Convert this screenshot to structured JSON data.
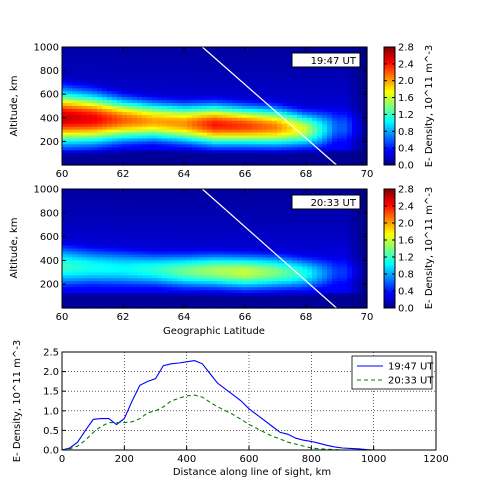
{
  "panels": [
    {
      "id": "top",
      "time_label": "19:47 UT",
      "ylabel": "Altitude, km",
      "xlabel": "",
      "colorbar_label": "E- Density, 10^11 m^-3",
      "xticks": [
        "60",
        "62",
        "64",
        "66",
        "68",
        "70"
      ],
      "yticks": [
        "200",
        "400",
        "600",
        "800",
        "1000"
      ],
      "cbticks": [
        "0.0",
        "0.4",
        "0.8",
        "1.2",
        "1.6",
        "2.0",
        "2.4",
        "2.8"
      ]
    },
    {
      "id": "middle",
      "time_label": "20:33 UT",
      "ylabel": "Altitude, km",
      "xlabel": "Geographic Latitude",
      "colorbar_label": "E- Density, 10^11 m^-3",
      "xticks": [
        "60",
        "62",
        "64",
        "66",
        "68",
        "70"
      ],
      "yticks": [
        "200",
        "400",
        "600",
        "800",
        "1000"
      ],
      "cbticks": [
        "0.0",
        "0.4",
        "0.8",
        "1.2",
        "1.6",
        "2.0",
        "2.4",
        "2.8"
      ]
    }
  ],
  "line_panel": {
    "xlabel": "Distance along line of sight, km",
    "ylabel": "E- Density, 10^11 m^-3",
    "xticks": [
      "0",
      "200",
      "400",
      "600",
      "800",
      "1000",
      "1200"
    ],
    "yticks": [
      "0.0",
      "0.5",
      "1.0",
      "1.5",
      "2.0",
      "2.5"
    ]
  },
  "chart_data": [
    {
      "type": "heatmap",
      "title": "19:47 UT",
      "xlabel": "",
      "ylabel": "Altitude, km",
      "xlim": [
        60,
        70
      ],
      "ylim": [
        0,
        1000
      ],
      "colorbar": {
        "label": "E- Density, 10^11 m^-3",
        "range": [
          0.0,
          2.8
        ],
        "colormap": "jet"
      },
      "ridge": {
        "lat": [
          60,
          61,
          62,
          63,
          64,
          65,
          66,
          67,
          68,
          68.5,
          69
        ],
        "peak_altitude_km": [
          400,
          390,
          380,
          370,
          350,
          340,
          330,
          320,
          300,
          300,
          320
        ],
        "peak_density": [
          2.6,
          2.5,
          2.2,
          2.0,
          2.05,
          2.4,
          2.3,
          2.1,
          1.6,
          1.1,
          0.6
        ],
        "width_km": [
          150,
          140,
          120,
          110,
          110,
          115,
          110,
          110,
          100,
          110,
          120
        ]
      },
      "line_of_sight": {
        "start": [
          64.6,
          1000
        ],
        "end": [
          69.0,
          0
        ]
      },
      "grid": false
    },
    {
      "type": "heatmap",
      "title": "20:33 UT",
      "xlabel": "Geographic Latitude",
      "ylabel": "Altitude, km",
      "xlim": [
        60,
        70
      ],
      "ylim": [
        0,
        1000
      ],
      "colorbar": {
        "label": "E- Density, 10^11 m^-3",
        "range": [
          0.0,
          2.8
        ],
        "colormap": "jet"
      },
      "ridge": {
        "lat": [
          60,
          61,
          62,
          63,
          64,
          65,
          66,
          67,
          68,
          68.5,
          69
        ],
        "peak_altitude_km": [
          350,
          340,
          330,
          320,
          310,
          310,
          300,
          300,
          290,
          290,
          300
        ],
        "peak_density": [
          1.2,
          1.1,
          1.05,
          1.15,
          1.35,
          1.5,
          1.6,
          1.4,
          1.1,
          0.8,
          0.5
        ],
        "width_km": [
          120,
          110,
          110,
          100,
          100,
          100,
          100,
          100,
          95,
          100,
          110
        ]
      },
      "line_of_sight": {
        "start": [
          64.6,
          1000
        ],
        "end": [
          69.0,
          0
        ]
      },
      "grid": false
    },
    {
      "type": "line",
      "title": "",
      "xlabel": "Distance along line of sight, km",
      "ylabel": "E- Density, 10^11 m^-3",
      "xlim": [
        0,
        1200
      ],
      "ylim": [
        0,
        2.5
      ],
      "grid": true,
      "legend": "top-right",
      "series": [
        {
          "name": "19:47 UT",
          "color": "#0000ff",
          "style": "solid",
          "x": [
            0,
            25,
            50,
            75,
            100,
            125,
            150,
            175,
            200,
            225,
            250,
            275,
            300,
            325,
            350,
            375,
            400,
            425,
            450,
            475,
            500,
            525,
            550,
            575,
            600,
            625,
            650,
            675,
            700,
            725,
            750,
            775,
            800,
            825,
            850,
            875,
            900,
            925,
            950,
            975,
            1000
          ],
          "y": [
            0.0,
            0.05,
            0.2,
            0.5,
            0.78,
            0.8,
            0.8,
            0.65,
            0.8,
            1.25,
            1.65,
            1.75,
            1.82,
            2.15,
            2.2,
            2.22,
            2.25,
            2.28,
            2.2,
            1.95,
            1.7,
            1.55,
            1.4,
            1.25,
            1.05,
            0.9,
            0.75,
            0.6,
            0.45,
            0.4,
            0.3,
            0.25,
            0.22,
            0.17,
            0.12,
            0.08,
            0.05,
            0.04,
            0.03,
            0.01,
            0.0
          ]
        },
        {
          "name": "20:33 UT",
          "color": "#008000",
          "style": "dashed",
          "x": [
            0,
            25,
            50,
            75,
            100,
            125,
            150,
            175,
            200,
            225,
            250,
            275,
            300,
            325,
            350,
            375,
            400,
            425,
            450,
            475,
            500,
            525,
            550,
            575,
            600,
            625,
            650,
            675,
            700,
            725,
            750,
            775,
            800,
            825,
            850,
            875,
            900,
            925,
            950,
            975,
            1000
          ],
          "y": [
            0.0,
            0.03,
            0.1,
            0.25,
            0.45,
            0.6,
            0.7,
            0.7,
            0.7,
            0.72,
            0.8,
            0.95,
            1.0,
            1.1,
            1.25,
            1.32,
            1.38,
            1.4,
            1.35,
            1.22,
            1.1,
            1.0,
            0.9,
            0.78,
            0.65,
            0.55,
            0.45,
            0.35,
            0.28,
            0.2,
            0.15,
            0.1,
            0.05,
            0.03,
            0.02,
            0.01,
            0.0,
            0.0,
            0.0,
            0.0,
            0.0
          ]
        }
      ]
    }
  ]
}
